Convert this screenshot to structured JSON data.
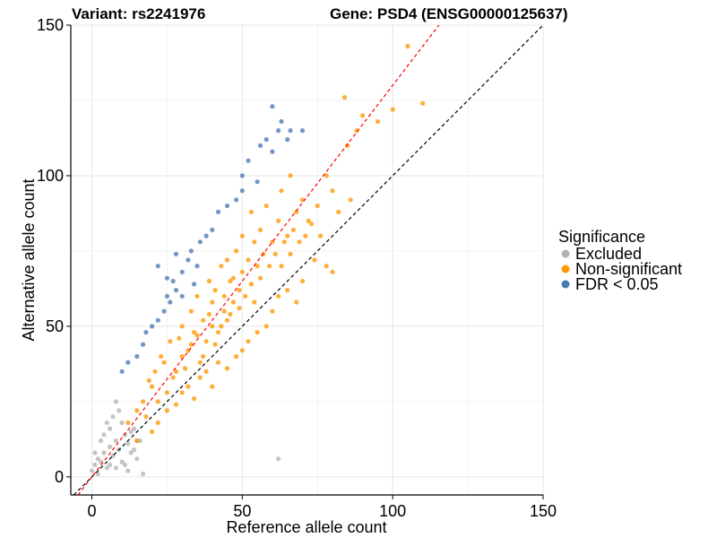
{
  "chart_data": {
    "type": "scatter",
    "title_left": "Variant: rs2241976",
    "title_right": "Gene: PSD4 (ENSG00000125637)",
    "xlabel": "Reference allele count",
    "ylabel": "Alternative allele count",
    "xlim": [
      -7,
      150
    ],
    "ylim": [
      -6,
      150
    ],
    "xticks": [
      0,
      50,
      100,
      150
    ],
    "yticks": [
      0,
      50,
      100,
      150
    ],
    "grid": true,
    "legend": {
      "title": "Significance",
      "position": "right",
      "entries": [
        {
          "label": "Excluded",
          "color": "#b3b3b3"
        },
        {
          "label": "Non-significant",
          "color": "#ff9900"
        },
        {
          "label": "FDR < 0.05",
          "color": "#4a7ab5"
        }
      ]
    },
    "reference_lines": [
      {
        "name": "identity",
        "slope": 1.0,
        "intercept": 0,
        "color": "#000000",
        "style": "dashed"
      },
      {
        "name": "fit",
        "slope": 1.3,
        "intercept": 0,
        "color": "#ff0000",
        "style": "dashed"
      }
    ],
    "series": [
      {
        "name": "Excluded",
        "color": "#b3b3b3",
        "points": [
          [
            0,
            2
          ],
          [
            1,
            4
          ],
          [
            2,
            6
          ],
          [
            3,
            5
          ],
          [
            4,
            8
          ],
          [
            5,
            3
          ],
          [
            6,
            10
          ],
          [
            7,
            7
          ],
          [
            8,
            12
          ],
          [
            9,
            9
          ],
          [
            10,
            5
          ],
          [
            11,
            14
          ],
          [
            12,
            11
          ],
          [
            13,
            8
          ],
          [
            14,
            16
          ],
          [
            15,
            6
          ],
          [
            16,
            12
          ],
          [
            5,
            18
          ],
          [
            7,
            20
          ],
          [
            4,
            14
          ],
          [
            9,
            22
          ],
          [
            11,
            4
          ],
          [
            2,
            1
          ],
          [
            3,
            12
          ],
          [
            6,
            4
          ],
          [
            8,
            3
          ],
          [
            10,
            18
          ],
          [
            12,
            2
          ],
          [
            13,
            15
          ],
          [
            14,
            9
          ],
          [
            15,
            12
          ],
          [
            62,
            6
          ],
          [
            17,
            1
          ],
          [
            6,
            16
          ],
          [
            8,
            25
          ],
          [
            1,
            8
          ]
        ]
      },
      {
        "name": "Non-significant",
        "color": "#ff9900",
        "points": [
          [
            12,
            18
          ],
          [
            15,
            22
          ],
          [
            18,
            20
          ],
          [
            20,
            30
          ],
          [
            22,
            25
          ],
          [
            24,
            38
          ],
          [
            25,
            28
          ],
          [
            26,
            45
          ],
          [
            28,
            35
          ],
          [
            30,
            50
          ],
          [
            30,
            40
          ],
          [
            32,
            42
          ],
          [
            33,
            55
          ],
          [
            34,
            48
          ],
          [
            35,
            60
          ],
          [
            36,
            38
          ],
          [
            37,
            52
          ],
          [
            38,
            45
          ],
          [
            39,
            65
          ],
          [
            40,
            50
          ],
          [
            40,
            58
          ],
          [
            41,
            62
          ],
          [
            42,
            48
          ],
          [
            43,
            70
          ],
          [
            44,
            55
          ],
          [
            45,
            52
          ],
          [
            45,
            72
          ],
          [
            46,
            65
          ],
          [
            47,
            58
          ],
          [
            48,
            75
          ],
          [
            49,
            62
          ],
          [
            50,
            68
          ],
          [
            50,
            80
          ],
          [
            52,
            72
          ],
          [
            53,
            88
          ],
          [
            54,
            78
          ],
          [
            55,
            70
          ],
          [
            56,
            82
          ],
          [
            58,
            90
          ],
          [
            60,
            78
          ],
          [
            62,
            85
          ],
          [
            63,
            95
          ],
          [
            65,
            80
          ],
          [
            66,
            100
          ],
          [
            68,
            88
          ],
          [
            70,
            92
          ],
          [
            72,
            85
          ],
          [
            75,
            90
          ],
          [
            78,
            100
          ],
          [
            80,
            95
          ],
          [
            84,
            126
          ],
          [
            85,
            110
          ],
          [
            88,
            115
          ],
          [
            90,
            120
          ],
          [
            95,
            118
          ],
          [
            100,
            122
          ],
          [
            105,
            143
          ],
          [
            110,
            124
          ],
          [
            20,
            15
          ],
          [
            22,
            18
          ],
          [
            25,
            22
          ],
          [
            28,
            24
          ],
          [
            30,
            28
          ],
          [
            32,
            30
          ],
          [
            34,
            26
          ],
          [
            36,
            33
          ],
          [
            38,
            35
          ],
          [
            40,
            30
          ],
          [
            42,
            38
          ],
          [
            45,
            36
          ],
          [
            48,
            40
          ],
          [
            50,
            42
          ],
          [
            52,
            45
          ],
          [
            55,
            48
          ],
          [
            58,
            50
          ],
          [
            60,
            55
          ],
          [
            62,
            60
          ],
          [
            65,
            62
          ],
          [
            68,
            58
          ],
          [
            70,
            65
          ],
          [
            74,
            72
          ],
          [
            78,
            70
          ],
          [
            80,
            68
          ],
          [
            15,
            12
          ],
          [
            17,
            25
          ],
          [
            19,
            32
          ],
          [
            21,
            35
          ],
          [
            23,
            40
          ],
          [
            27,
            33
          ],
          [
            29,
            46
          ],
          [
            31,
            36
          ],
          [
            33,
            44
          ],
          [
            35,
            47
          ],
          [
            37,
            40
          ],
          [
            39,
            54
          ],
          [
            41,
            44
          ],
          [
            43,
            50
          ],
          [
            44,
            60
          ],
          [
            46,
            54
          ],
          [
            47,
            66
          ],
          [
            49,
            56
          ],
          [
            51,
            60
          ],
          [
            53,
            64
          ],
          [
            54,
            58
          ],
          [
            56,
            66
          ],
          [
            57,
            74
          ],
          [
            59,
            70
          ],
          [
            61,
            74
          ],
          [
            63,
            70
          ],
          [
            64,
            78
          ],
          [
            66,
            74
          ],
          [
            67,
            82
          ],
          [
            69,
            78
          ],
          [
            71,
            80
          ],
          [
            73,
            84
          ],
          [
            76,
            80
          ],
          [
            82,
            88
          ],
          [
            86,
            92
          ]
        ]
      },
      {
        "name": "FDR < 0.05",
        "color": "#4a7ab5",
        "points": [
          [
            10,
            35
          ],
          [
            12,
            38
          ],
          [
            15,
            40
          ],
          [
            17,
            44
          ],
          [
            18,
            48
          ],
          [
            20,
            50
          ],
          [
            22,
            52
          ],
          [
            24,
            55
          ],
          [
            25,
            60
          ],
          [
            26,
            58
          ],
          [
            27,
            65
          ],
          [
            28,
            62
          ],
          [
            30,
            68
          ],
          [
            32,
            72
          ],
          [
            33,
            75
          ],
          [
            35,
            70
          ],
          [
            36,
            78
          ],
          [
            38,
            80
          ],
          [
            40,
            82
          ],
          [
            42,
            88
          ],
          [
            45,
            90
          ],
          [
            48,
            92
          ],
          [
            50,
            95
          ],
          [
            50,
            100
          ],
          [
            52,
            105
          ],
          [
            55,
            98
          ],
          [
            56,
            110
          ],
          [
            58,
            112
          ],
          [
            60,
            108
          ],
          [
            60,
            123
          ],
          [
            62,
            115
          ],
          [
            63,
            118
          ],
          [
            65,
            112
          ],
          [
            66,
            115
          ],
          [
            70,
            115
          ],
          [
            22,
            70
          ],
          [
            25,
            66
          ],
          [
            28,
            74
          ],
          [
            30,
            60
          ],
          [
            34,
            64
          ]
        ]
      }
    ]
  }
}
